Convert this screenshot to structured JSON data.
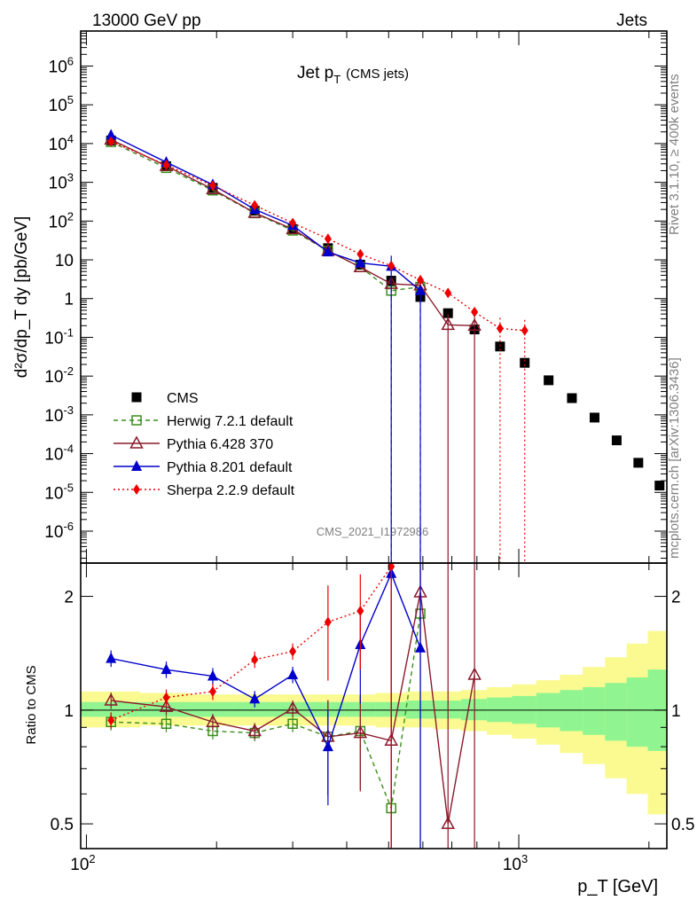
{
  "header": {
    "energy": "13000 GeV pp",
    "category": "Jets",
    "plot_title_main": "Jet p",
    "plot_title_sub": "T",
    "plot_title_extra": "(CMS jets)",
    "rivet": "Rivet 3.1.10, ≥ 400k events",
    "mcplots": "mcplots.cern.ch [arXiv:1306.3436]",
    "analysis": "CMS_2021_I1972986"
  },
  "axes": {
    "xlabel": "p_T [GeV]",
    "ylabel_top": "d²σ/dp_T dy [pb/GeV]",
    "ylabel_ratio": "Ratio to CMS"
  },
  "chart_data": [
    {
      "type": "scatter",
      "panel": "main",
      "xlog": true,
      "ylog": true,
      "xlim": [
        97,
        2200
      ],
      "ylim": [
        1.5e-07,
        8000000.0
      ],
      "ytick_labels": [
        "10^6",
        "10^5",
        "10^4",
        "10^3",
        "10^2",
        "10",
        "1",
        "10^-1",
        "10^-2",
        "10^-3",
        "10^-4",
        "10^-5",
        "10^-6"
      ],
      "xtick_labels": [
        "10^2",
        "10^3"
      ],
      "legend_position": "bottom-left",
      "series": [
        {
          "name": "CMS",
          "color": "#000000",
          "marker": "square-filled",
          "line": "none",
          "x": [
            114,
            153,
            196,
            245,
            300,
            362,
            430,
            507,
            592,
            686,
            790,
            905,
            1032,
            1172,
            1327,
            1497,
            1684,
            1890,
            2116
          ],
          "y": [
            12000,
            2600,
            720,
            185,
            62,
            20,
            7.5,
            2.9,
            1.1,
            0.42,
            0.16,
            0.058,
            0.022,
            0.0078,
            0.0027,
            0.00085,
            0.00022,
            5.8e-05,
            1.5e-05
          ]
        },
        {
          "name": "Herwig 7.2.1 default",
          "color": "#3a8d1b",
          "marker": "square-open",
          "line": "dashed",
          "x": [
            114,
            153,
            196,
            245,
            300,
            362,
            430,
            507,
            592
          ],
          "y": [
            11000,
            2350,
            620,
            160,
            57,
            17,
            6.5,
            1.6,
            2.0
          ]
        },
        {
          "name": "Pythia 6.428 370",
          "color": "#8b1a2b",
          "marker": "triangle-open",
          "line": "solid",
          "x": [
            114,
            153,
            196,
            245,
            300,
            362,
            430,
            507,
            592,
            686,
            790
          ],
          "y": [
            12700,
            2650,
            665,
            163,
            62,
            17,
            6.5,
            2.4,
            2.2,
            0.21,
            0.2
          ]
        },
        {
          "name": "Pythia 8.201 default",
          "color": "#0000cc",
          "marker": "triangle-filled",
          "line": "solid",
          "x": [
            114,
            153,
            196,
            245,
            300,
            362,
            430,
            507,
            592
          ],
          "y": [
            16500,
            3300,
            870,
            200,
            77,
            16,
            8.3,
            6.8,
            1.6
          ]
        },
        {
          "name": "Sherpa 2.2.9 default",
          "color": "#ee0000",
          "marker": "diamond-filled",
          "line": "dotted",
          "x": [
            114,
            153,
            196,
            245,
            300,
            362,
            430,
            507,
            592,
            686,
            790,
            905,
            1032
          ],
          "y": [
            11300,
            2800,
            820,
            255,
            89,
            35,
            14,
            7,
            3.0,
            1.4,
            0.45,
            0.17,
            0.15
          ]
        }
      ]
    },
    {
      "type": "line",
      "panel": "ratio",
      "xlog": true,
      "ylog": true,
      "xlim": [
        97,
        2200
      ],
      "ylim": [
        0.43,
        2.45
      ],
      "ytick_labels": [
        "0.5",
        "1",
        "2"
      ],
      "reference_line": 1,
      "bands": {
        "edges": [
          97,
          133,
          173,
          219,
          271,
          330,
          395,
          467,
          547,
          636,
          735,
          844,
          965,
          1098,
          1245,
          1406,
          1583,
          1776,
          1988,
          2200
        ],
        "inner_up": [
          1.05,
          1.05,
          1.05,
          1.05,
          1.05,
          1.05,
          1.05,
          1.05,
          1.06,
          1.06,
          1.07,
          1.08,
          1.09,
          1.11,
          1.13,
          1.15,
          1.18,
          1.22,
          1.28
        ],
        "inner_down": [
          0.96,
          0.96,
          0.96,
          0.96,
          0.96,
          0.96,
          0.96,
          0.96,
          0.95,
          0.95,
          0.94,
          0.93,
          0.92,
          0.9,
          0.88,
          0.86,
          0.83,
          0.8,
          0.78
        ],
        "outer_up": [
          1.12,
          1.11,
          1.1,
          1.1,
          1.1,
          1.1,
          1.1,
          1.11,
          1.12,
          1.12,
          1.13,
          1.15,
          1.17,
          1.2,
          1.24,
          1.3,
          1.38,
          1.5,
          1.62
        ],
        "outer_down": [
          0.9,
          0.91,
          0.91,
          0.91,
          0.91,
          0.91,
          0.91,
          0.9,
          0.9,
          0.89,
          0.88,
          0.86,
          0.84,
          0.81,
          0.77,
          0.72,
          0.66,
          0.6,
          0.53
        ],
        "inner_color": "#90f590",
        "outer_color": "#fafa90"
      },
      "series": [
        {
          "name": "Herwig 7.2.1 default",
          "color": "#3a8d1b",
          "marker": "square-open",
          "line": "dashed",
          "x": [
            114,
            153,
            196,
            245,
            300,
            362,
            430,
            507,
            592
          ],
          "y": [
            0.93,
            0.92,
            0.88,
            0.87,
            0.92,
            0.85,
            0.88,
            0.55,
            1.8
          ]
        },
        {
          "name": "Pythia 6.428 370",
          "color": "#8b1a2b",
          "marker": "triangle-open",
          "line": "solid",
          "x": [
            114,
            153,
            196,
            245,
            300,
            362,
            430,
            507,
            592,
            686,
            790
          ],
          "y": [
            1.06,
            1.02,
            0.93,
            0.88,
            1.01,
            0.85,
            0.87,
            0.83,
            2.05,
            0.5,
            1.24
          ]
        },
        {
          "name": "Pythia 8.201 default",
          "color": "#0000cc",
          "marker": "triangle-filled",
          "line": "solid",
          "x": [
            114,
            153,
            196,
            245,
            300,
            362,
            430,
            507,
            592
          ],
          "y": [
            1.37,
            1.28,
            1.23,
            1.07,
            1.24,
            0.8,
            1.49,
            2.3,
            1.46
          ]
        },
        {
          "name": "Sherpa 2.2.9 default",
          "color": "#ee0000",
          "marker": "diamond-filled",
          "line": "dotted",
          "x": [
            114,
            153,
            196,
            245,
            300,
            362,
            430,
            507
          ],
          "y": [
            0.94,
            1.08,
            1.12,
            1.36,
            1.43,
            1.71,
            1.83,
            2.4
          ]
        }
      ]
    }
  ]
}
